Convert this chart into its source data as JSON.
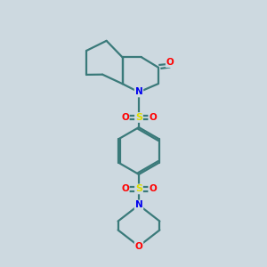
{
  "background_color": "#cdd9e0",
  "bond_color": "#3a7a7a",
  "atom_colors": {
    "O": "#ff0000",
    "N": "#0000ee",
    "S": "#dddd00",
    "C": "#3a7a7a"
  },
  "line_width": 1.6,
  "dbo": 0.055,
  "figsize": [
    3.0,
    3.0
  ],
  "dpi": 100,
  "xlim": [
    0,
    10
  ],
  "ylim": [
    0,
    10
  ]
}
